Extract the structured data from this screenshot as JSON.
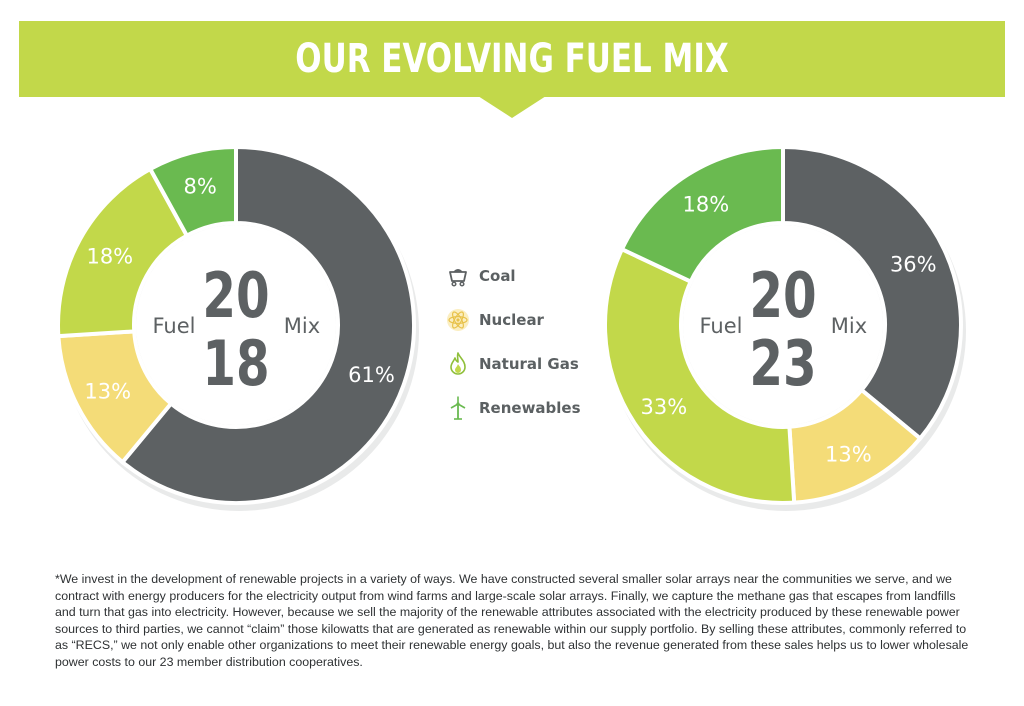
{
  "header": {
    "title": "OUR EVOLVING FUEL MIX"
  },
  "colors": {
    "coal": "#5d6163",
    "nuclear": "#f4dc78",
    "natural_gas": "#c2d84a",
    "renewables": "#6aba50",
    "banner": "#c2d84a"
  },
  "chart_data": [
    {
      "type": "pie",
      "year_top": "20",
      "year_bottom": "18",
      "left_word": "Fuel",
      "right_word": "Mix",
      "slices": [
        {
          "category": "Coal",
          "value": 61,
          "label": "61%"
        },
        {
          "category": "Nuclear",
          "value": 13,
          "label": "13%"
        },
        {
          "category": "Natural Gas",
          "value": 18,
          "label": "18%"
        },
        {
          "category": "Renewables",
          "value": 8,
          "label": "8%"
        }
      ]
    },
    {
      "type": "pie",
      "year_top": "20",
      "year_bottom": "23",
      "left_word": "Fuel",
      "right_word": "Mix",
      "slices": [
        {
          "category": "Coal",
          "value": 36,
          "label": "36%"
        },
        {
          "category": "Nuclear",
          "value": 13,
          "label": "13%"
        },
        {
          "category": "Natural Gas",
          "value": 33,
          "label": "33%"
        },
        {
          "category": "Renewables",
          "value": 18,
          "label": "18%"
        }
      ]
    }
  ],
  "legend": [
    {
      "label": "Coal",
      "icon": "coal-cart-icon"
    },
    {
      "label": "Nuclear",
      "icon": "atom-icon"
    },
    {
      "label": "Natural Gas",
      "icon": "flame-icon"
    },
    {
      "label": "Renewables",
      "icon": "wind-turbine-icon"
    }
  ],
  "footnote": "*We invest in the development of renewable projects in a variety of ways. We have constructed several smaller solar arrays near the communities we serve, and we contract with energy producers for the electricity output from wind farms and large-scale solar arrays. Finally, we capture the methane gas that escapes from landfills and turn that gas into electricity. However, because we sell the majority of the renewable attributes associated with the electricity produced by these renewable power sources to third parties, we cannot “claim” those kilowatts that are generated as renewable within our supply portfolio. By selling these attributes, commonly referred to as “RECS,” we not only enable other organizations to meet their renewable energy goals, but also the revenue generated from these sales helps us to lower wholesale power costs to our 23 member distribution cooperatives."
}
